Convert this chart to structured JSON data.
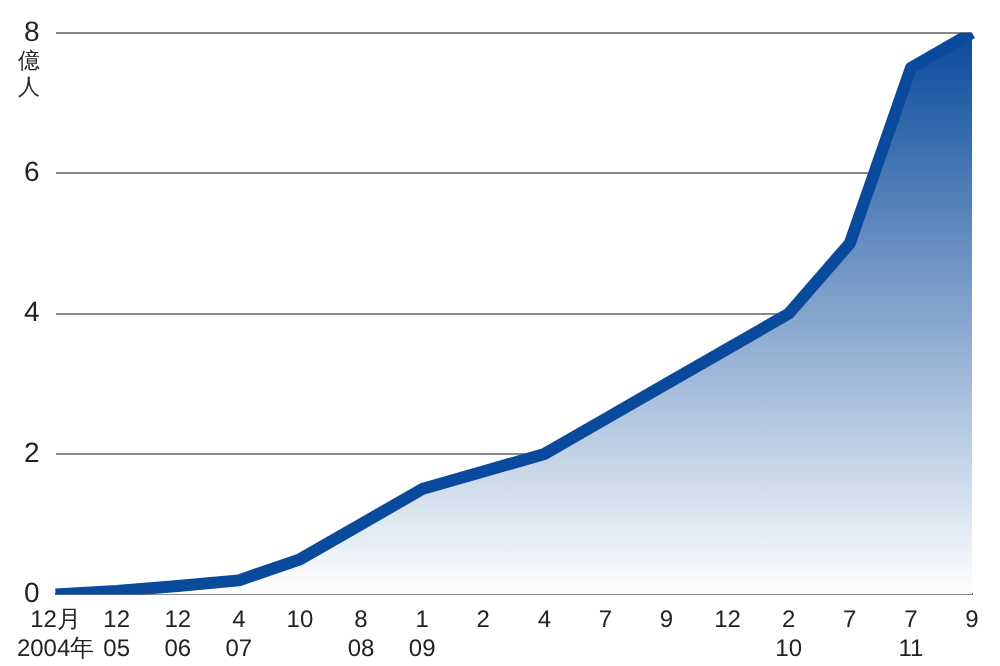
{
  "chart_data": {
    "type": "area",
    "ylabel": "億人",
    "categories": [
      "12月\n2004年",
      "12\n05",
      "12\n06",
      "4\n07",
      "10",
      "8\n08",
      "1\n09",
      "2",
      "4",
      "7",
      "9",
      "12",
      "2\n10",
      "7",
      "7\n11",
      "9"
    ],
    "series": [
      {
        "color": "#0a4a9c",
        "values": [
          0,
          0.05,
          0.12,
          0.2,
          0.5,
          1.0,
          1.5,
          1.75,
          2.0,
          2.5,
          3.0,
          3.5,
          4.0,
          5.0,
          7.5,
          8.0
        ]
      }
    ],
    "ylim": [
      0,
      8
    ],
    "yticks": [
      0,
      2,
      4,
      6,
      8
    ],
    "grid": "y",
    "legend": false,
    "marker": "none",
    "line_style": "solid"
  }
}
